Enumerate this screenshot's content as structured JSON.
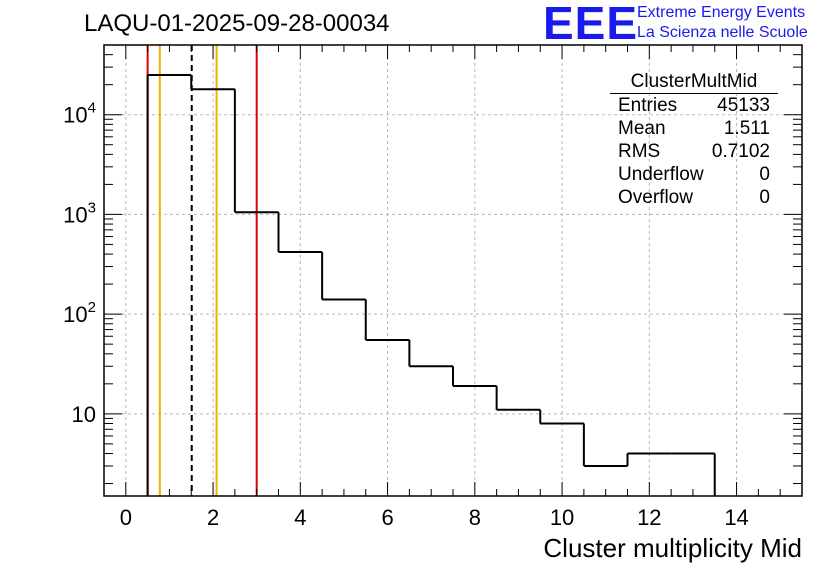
{
  "header": {
    "title": "LAQU-01-2025-09-28-00034",
    "logo_letters": "EEE",
    "logo_line1": "Extreme Energy Events",
    "logo_line2": "La Scienza nelle Scuole"
  },
  "stats_box": {
    "title": "ClusterMultMid",
    "rows": [
      {
        "label": "Entries",
        "value": "45133"
      },
      {
        "label": "Mean",
        "value": "1.511"
      },
      {
        "label": "RMS",
        "value": "0.7102"
      },
      {
        "label": "Underflow",
        "value": "0"
      },
      {
        "label": "Overflow",
        "value": "0"
      }
    ]
  },
  "chart_data": {
    "type": "histogram",
    "title": "LAQU-01-2025-09-28-00034",
    "xlabel": "Cluster multiplicity Mid",
    "ylabel": "",
    "xlim": [
      -0.5,
      15.5
    ],
    "ylim_log": [
      1.5,
      50000
    ],
    "yscale": "log",
    "grid": true,
    "bin_edges": [
      0.5,
      1.5,
      2.5,
      3.5,
      4.5,
      5.5,
      6.5,
      7.5,
      8.5,
      9.5,
      10.5,
      11.5,
      12.5,
      13.5
    ],
    "values": [
      25000,
      18000,
      1050,
      420,
      140,
      55,
      30,
      19,
      11,
      8,
      3,
      4,
      4
    ],
    "x_ticks": [
      "0",
      "2",
      "4",
      "6",
      "8",
      "10",
      "12",
      "14"
    ],
    "y_ticks": [
      {
        "value": 10,
        "base": "10",
        "exp": ""
      },
      {
        "value": 100,
        "base": "10",
        "exp": "2"
      },
      {
        "value": 1000,
        "base": "10",
        "exp": "3"
      },
      {
        "value": 10000,
        "base": "10",
        "exp": "4"
      }
    ],
    "vertical_lines": [
      {
        "x": 0.5,
        "color": "#dd0000",
        "style": "solid"
      },
      {
        "x": 0.78,
        "color": "#f0b000",
        "style": "solid"
      },
      {
        "x": 1.511,
        "color": "#000000",
        "style": "dashed"
      },
      {
        "x": 2.08,
        "color": "#f0b000",
        "style": "solid"
      },
      {
        "x": 3.0,
        "color": "#dd0000",
        "style": "solid"
      }
    ]
  }
}
